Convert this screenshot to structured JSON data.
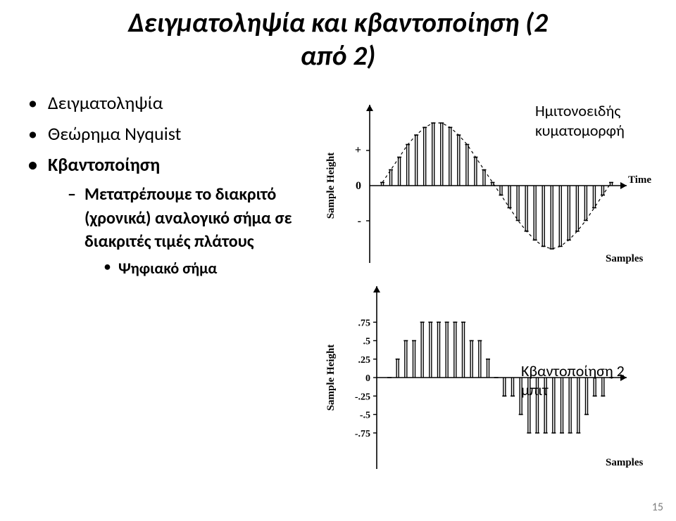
{
  "title_line1": "Δειγματοληψία και κβαντοποίηση (2",
  "title_line2": "από 2)",
  "bullets": {
    "b1": "Δειγματοληψία",
    "b2": "Θεώρημα Nyquist",
    "b3": "Κβαντοποίηση",
    "sub1_a": "Μετατρέπουμε το διακριτό",
    "sub1_b": "(χρονικά) αναλογικό σήμα σε",
    "sub1_c": "διακριτές τιμές πλάτους",
    "subsub1": "Ψηφιακό σήμα"
  },
  "labels": {
    "top_chart_1": "Ημιτονοειδής",
    "top_chart_2": "κυματομορφή",
    "bottom_chart": "Κβαντοποίηση 2 μπιτ"
  },
  "page_number": "15",
  "chart_top": {
    "type": "bar-stem",
    "y_axis_label": "Sample Height",
    "x_axis_label_1": "Time",
    "x_axis_label_2": "Samples",
    "y_ticks": [
      "+",
      "0",
      "-"
    ],
    "colors": {
      "stroke": "#000000",
      "background": "#ffffff"
    },
    "samples": [
      0.05,
      0.25,
      0.45,
      0.65,
      0.8,
      0.92,
      0.99,
      0.99,
      0.92,
      0.8,
      0.65,
      0.45,
      0.25,
      0.05,
      -0.15,
      -0.35,
      -0.55,
      -0.72,
      -0.86,
      -0.96,
      -1.0,
      -0.96,
      -0.86,
      -0.72,
      -0.55,
      -0.35,
      -0.15,
      0.05
    ],
    "envelope_dash": [
      4,
      4
    ]
  },
  "chart_bottom": {
    "type": "bar-stem-quantized",
    "y_axis_label": "Sample Height",
    "x_axis_label": "Samples",
    "y_ticks": [
      ".75",
      ".5",
      ".25",
      "0",
      "-.25",
      "-.5",
      "-.75"
    ],
    "y_tick_values": [
      0.75,
      0.5,
      0.25,
      0,
      -0.25,
      -0.5,
      -0.75
    ],
    "colors": {
      "stroke": "#000000",
      "background": "#ffffff"
    },
    "samples": [
      0.0,
      0.25,
      0.5,
      0.5,
      0.75,
      0.75,
      0.75,
      0.75,
      0.75,
      0.75,
      0.5,
      0.5,
      0.25,
      0.0,
      -0.25,
      -0.25,
      -0.5,
      -0.75,
      -0.75,
      -0.75,
      -0.75,
      -0.75,
      -0.75,
      -0.75,
      -0.5,
      -0.25,
      -0.25,
      0.0
    ]
  }
}
